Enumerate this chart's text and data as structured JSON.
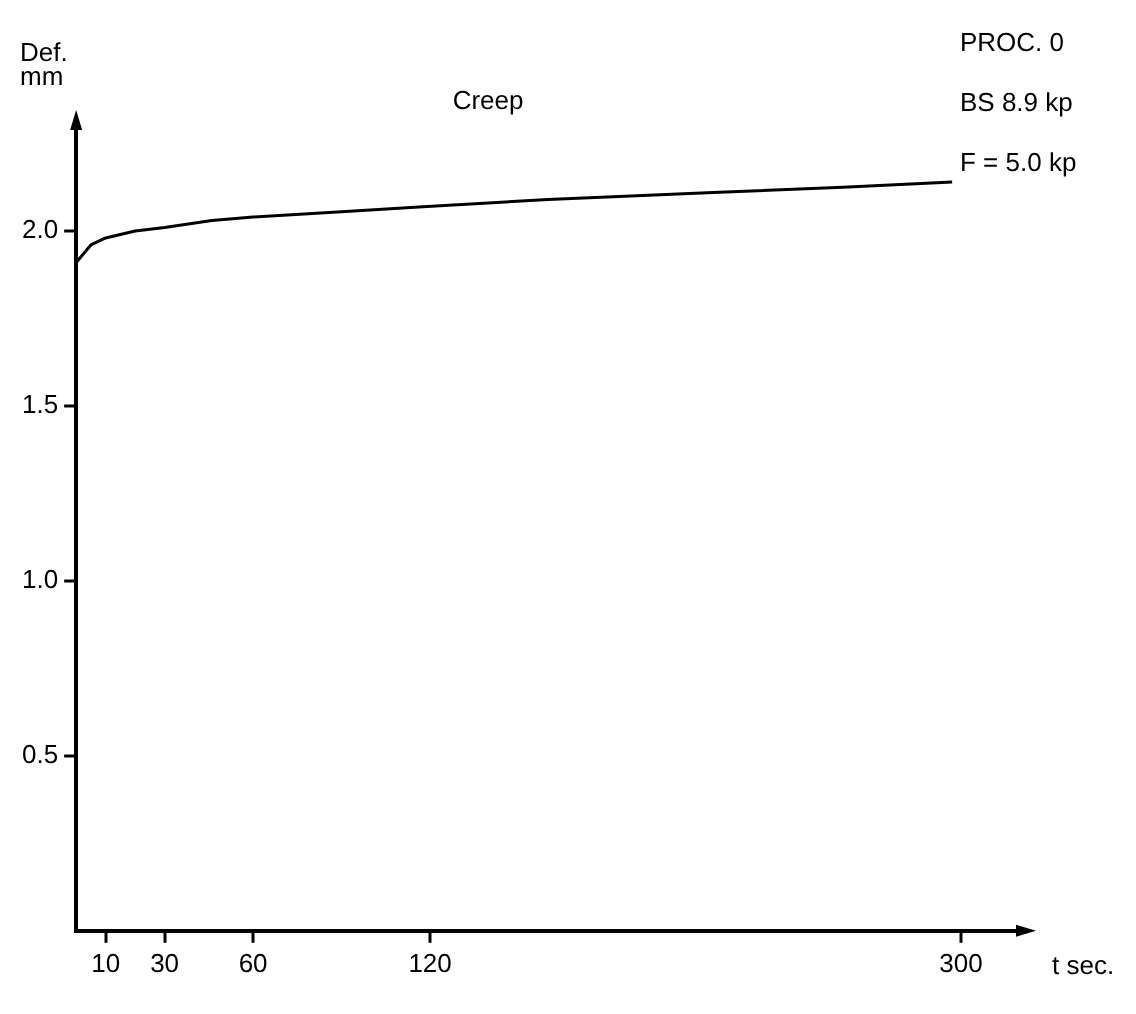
{
  "chart_data": {
    "type": "line",
    "title": "Creep",
    "xlabel": "t sec.",
    "ylabel": "Def.\nmm",
    "annotations": [
      "PROC. 0",
      "BS 8.9 kp",
      "F = 5.0 kp"
    ],
    "x": [
      0,
      2,
      5,
      10,
      20,
      30,
      46,
      60,
      90,
      119,
      160,
      216,
      260,
      297
    ],
    "values": [
      1.91,
      1.93,
      1.96,
      1.98,
      2.0,
      2.01,
      2.03,
      2.04,
      2.055,
      2.07,
      2.09,
      2.11,
      2.125,
      2.14
    ],
    "color": "#000000",
    "marker": "none",
    "line_style": "solid",
    "grid": false,
    "legend": false,
    "xlim": [
      0,
      320
    ],
    "xticks": [
      10,
      30,
      60,
      120,
      300
    ],
    "ylim": [
      0,
      2.3
    ],
    "yticks": [
      0.5,
      {
        "value": 1,
        "label": "1.0"
      },
      1.5,
      {
        "value": 2,
        "label": "2.0"
      }
    ]
  }
}
